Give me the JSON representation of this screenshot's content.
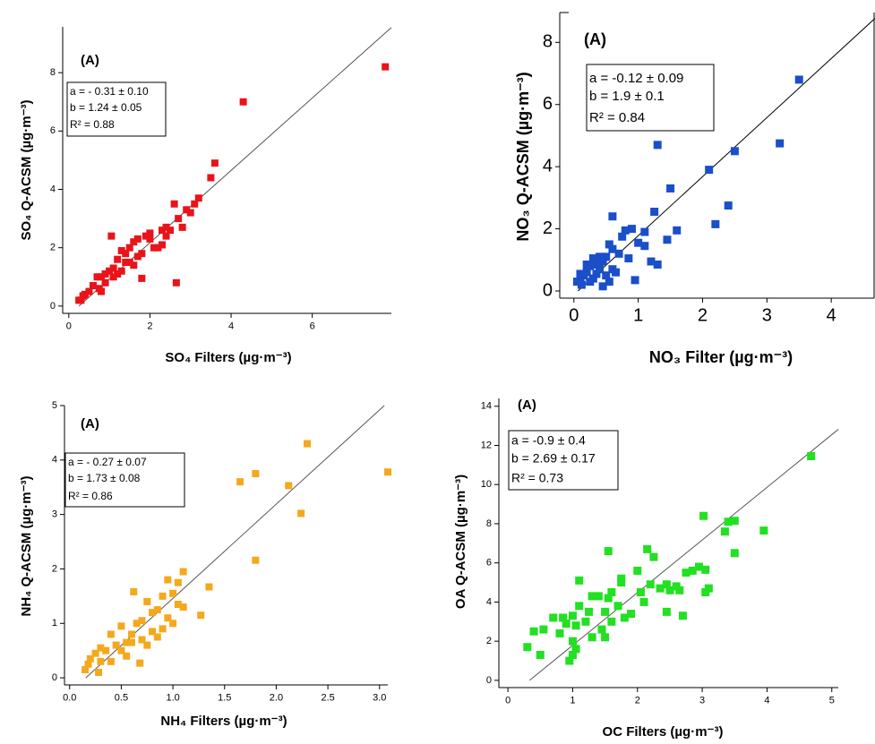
{
  "chart_data": [
    {
      "type": "scatter",
      "panel_label": "(A)",
      "x_label": "SO₄ Filters (µg·m⁻³)",
      "y_label": "SO₄  Q-ACSM (µg·m⁻³)",
      "annotation": [
        "a = - 0.31 ± 0.10",
        "b = 1.24 ± 0.05",
        "R² = 0.88"
      ],
      "fit_line": {
        "intercept": -0.31,
        "slope": 1.24
      },
      "color": "#e8141a",
      "x": [
        7.8,
        4.3,
        3.6,
        3.5,
        2.65,
        1.8,
        1.05,
        3.2,
        3.1,
        2.9,
        3.0,
        2.6,
        2.7,
        2.8,
        2.5,
        2.4,
        2.3,
        2.1,
        2.2,
        2.3,
        2.0,
        1.9,
        2.0,
        1.8,
        1.7,
        1.6,
        1.5,
        1.4,
        1.3,
        1.2,
        1.5,
        1.6,
        1.4,
        1.3,
        1.1,
        1.0,
        0.9,
        1.1,
        1.2,
        0.8,
        0.7,
        0.75,
        0.6,
        0.5,
        0.4,
        0.35,
        0.3,
        0.25,
        0.8,
        0.9,
        1.7,
        2.4
      ],
      "values": [
        8.2,
        7.0,
        4.9,
        4.4,
        0.8,
        0.95,
        2.4,
        3.7,
        3.5,
        3.3,
        3.2,
        3.5,
        3.0,
        2.7,
        2.6,
        2.7,
        2.6,
        2.0,
        2.0,
        2.1,
        2.5,
        2.4,
        2.3,
        1.8,
        2.3,
        2.2,
        2.0,
        1.8,
        1.9,
        1.6,
        1.5,
        1.4,
        1.5,
        1.2,
        1.3,
        1.2,
        1.1,
        1.0,
        1.1,
        1.0,
        1.0,
        0.6,
        0.7,
        0.5,
        0.4,
        0.35,
        0.2,
        0.2,
        0.5,
        0.8,
        1.7,
        2.4
      ],
      "xlim": [
        -0.15,
        7.95
      ],
      "ylim": [
        -0.25,
        9.57
      ],
      "xticks": [
        0,
        2,
        4,
        6
      ],
      "yticks": [
        0,
        2,
        4,
        6,
        8
      ]
    },
    {
      "type": "scatter",
      "panel_label": "(A)",
      "x_label": "NO₃ Filter (µg·m⁻³)",
      "y_label": "NO₃ Q-ACSM (µg·m⁻³)",
      "annotation": [
        "a  = -0.12 ± 0.09",
        "b = 1.9 ± 0.1",
        "R² = 0.84"
      ],
      "fit_line": {
        "intercept": -0.12,
        "slope": 1.9
      },
      "color": "#1a4fc8",
      "x": [
        3.5,
        1.3,
        3.2,
        2.5,
        2.1,
        1.5,
        2.4,
        1.25,
        2.2,
        1.6,
        1.45,
        0.6,
        0.9,
        0.8,
        1.1,
        1.0,
        1.1,
        0.75,
        0.7,
        1.2,
        1.3,
        0.85,
        0.95,
        0.55,
        0.6,
        0.5,
        0.45,
        0.4,
        0.35,
        0.3,
        0.25,
        0.2,
        0.15,
        0.1,
        0.05,
        0.12,
        0.3,
        0.5,
        0.45,
        0.6,
        0.35,
        0.2,
        0.1,
        0.65,
        0.55,
        0.4,
        0.25
      ],
      "values": [
        6.8,
        4.7,
        4.75,
        4.5,
        3.9,
        3.3,
        2.75,
        2.55,
        2.15,
        1.95,
        1.65,
        2.4,
        2.0,
        1.95,
        1.9,
        1.55,
        1.45,
        1.75,
        1.2,
        0.95,
        0.85,
        1.05,
        0.35,
        1.5,
        1.35,
        1.1,
        0.95,
        0.7,
        0.85,
        1.05,
        0.8,
        0.6,
        0.5,
        0.4,
        0.3,
        0.2,
        0.4,
        0.5,
        0.15,
        0.7,
        0.55,
        0.85,
        0.55,
        0.6,
        0.3,
        1.1,
        0.3
      ],
      "xlim": [
        -0.22,
        4.68
      ],
      "ylim": [
        -0.23,
        8.96
      ],
      "xticks": [
        0,
        1,
        2,
        3,
        4
      ],
      "yticks": [
        0,
        2,
        4,
        6,
        8
      ]
    },
    {
      "type": "scatter",
      "panel_label": "(A)",
      "x_label": "NH₄ Filters (µg·m⁻³)",
      "y_label": "NH₄  Q-ACSM (µg·m⁻³)",
      "annotation": [
        "a = - 0.27 ± 0.07",
        "b = 1.73 ± 0.08",
        "R² = 0.86"
      ],
      "fit_line": {
        "intercept": -0.27,
        "slope": 1.73
      },
      "color": "#f5a81c",
      "x": [
        3.08,
        2.3,
        2.12,
        1.8,
        1.65,
        2.24,
        1.8,
        1.35,
        1.27,
        1.1,
        1.05,
        1.0,
        0.95,
        1.05,
        1.1,
        0.9,
        0.85,
        0.95,
        0.8,
        0.75,
        0.7,
        0.65,
        0.62,
        0.6,
        0.55,
        0.5,
        0.45,
        0.4,
        0.35,
        0.3,
        0.25,
        0.2,
        0.15,
        0.18,
        0.3,
        0.4,
        0.55,
        0.68,
        0.7,
        0.8,
        0.9,
        1.0,
        0.85,
        0.5,
        0.75,
        0.6,
        0.28
      ],
      "values": [
        3.78,
        4.3,
        3.53,
        3.75,
        3.6,
        3.02,
        2.16,
        1.67,
        1.15,
        1.95,
        1.75,
        1.55,
        1.8,
        1.35,
        1.3,
        1.5,
        1.25,
        1.1,
        1.2,
        1.4,
        1.05,
        1.0,
        1.58,
        0.8,
        0.65,
        0.95,
        0.6,
        0.8,
        0.5,
        0.55,
        0.45,
        0.35,
        0.15,
        0.25,
        0.3,
        0.3,
        0.4,
        0.27,
        0.7,
        0.85,
        0.9,
        1.0,
        0.75,
        0.5,
        0.6,
        0.65,
        0.1
      ],
      "xlim": [
        -0.05,
        3.08
      ],
      "ylim": [
        -0.13,
        5.0
      ],
      "xticks": [
        {
          "value": 0,
          "label": "0.0"
        },
        0.5,
        {
          "value": 1,
          "label": "1.0"
        },
        1.5,
        {
          "value": 2,
          "label": "2.0"
        },
        2.5,
        {
          "value": 3,
          "label": "3.0"
        }
      ],
      "yticks": [
        0,
        1,
        2,
        3,
        4,
        5
      ]
    },
    {
      "type": "scatter",
      "panel_label": "(A)",
      "x_label": "OC Filters (µg·m⁻³)",
      "y_label": "OA Q-ACSM (µg·m⁻³)",
      "annotation": [
        "a = -0.9 ± 0.4",
        "b = 2.69 ± 0.17",
        "R² = 0.73"
      ],
      "fit_line": {
        "intercept": -0.9,
        "slope": 2.69
      },
      "color": "#22e022",
      "x": [
        4.68,
        3.95,
        3.5,
        3.4,
        3.35,
        3.02,
        3.5,
        3.05,
        3.1,
        3.05,
        2.95,
        2.85,
        2.75,
        2.65,
        2.6,
        2.45,
        2.35,
        2.2,
        2.15,
        2.25,
        2.7,
        2.45,
        2.1,
        2.0,
        1.9,
        1.8,
        1.75,
        1.75,
        1.6,
        1.55,
        1.55,
        1.5,
        1.45,
        1.5,
        1.4,
        1.3,
        1.25,
        1.2,
        1.1,
        1.1,
        1.05,
        1.0,
        0.95,
        1.0,
        1.05,
        1.0,
        0.9,
        0.85,
        0.8,
        0.7,
        0.55,
        0.5,
        0.4,
        0.3,
        1.3,
        1.6,
        1.7,
        2.05,
        2.5
      ],
      "values": [
        11.45,
        7.65,
        8.15,
        8.1,
        7.6,
        8.4,
        6.5,
        5.65,
        4.7,
        4.5,
        5.8,
        5.6,
        5.5,
        4.6,
        4.8,
        4.9,
        4.7,
        4.9,
        6.7,
        6.3,
        3.3,
        3.5,
        4.0,
        5.6,
        3.4,
        3.2,
        5.2,
        5.0,
        4.5,
        6.6,
        4.2,
        3.5,
        2.6,
        2.2,
        4.3,
        4.3,
        3.5,
        3.0,
        5.1,
        3.8,
        2.8,
        3.3,
        1.0,
        1.3,
        1.6,
        2.0,
        2.9,
        3.2,
        2.4,
        3.2,
        2.6,
        1.3,
        2.5,
        1.7,
        2.2,
        3.0,
        3.8,
        4.5,
        4.6
      ],
      "xlim": [
        -0.14,
        5.1
      ],
      "ylim": [
        -0.37,
        14.4
      ],
      "xticks": [
        0,
        1,
        2,
        3,
        4,
        5
      ],
      "yticks": [
        0,
        2,
        4,
        6,
        8,
        10,
        12,
        14
      ]
    }
  ]
}
